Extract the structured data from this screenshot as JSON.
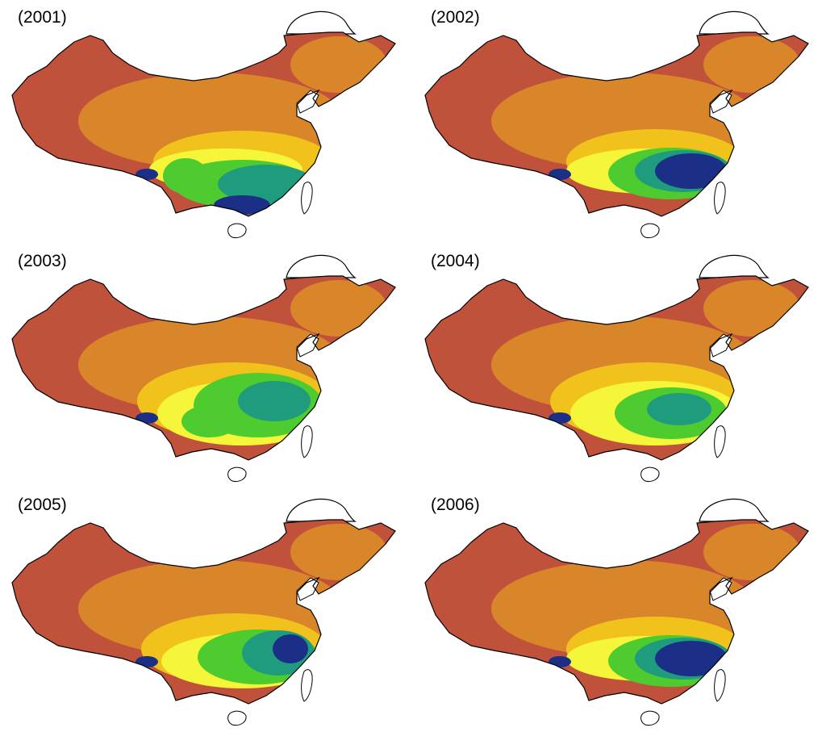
{
  "panels": [
    {
      "year_label": "(2001)",
      "pattern": "south",
      "colors": {
        "outer": "#c0513b",
        "north": "#d9862a",
        "mid": "#f2c21c",
        "light": "#f5f53a",
        "green": "#4ecb2e",
        "teal": "#1f9c7d",
        "blue": "#1b2f86"
      }
    },
    {
      "year_label": "(2002)",
      "pattern": "southeast",
      "colors": {
        "outer": "#c0513b",
        "north": "#d9862a",
        "mid": "#f2c21c",
        "light": "#f5f53a",
        "green": "#4ecb2e",
        "teal": "#1f9c7d",
        "blue": "#1b2f86"
      }
    },
    {
      "year_label": "(2003)",
      "pattern": "central",
      "colors": {
        "outer": "#c0513b",
        "north": "#d9862a",
        "mid": "#f2c21c",
        "light": "#f5f53a",
        "green": "#4ecb2e",
        "teal": "#1f9c7d",
        "blue": "#1b2f86"
      }
    },
    {
      "year_label": "(2004)",
      "pattern": "central-light",
      "colors": {
        "outer": "#c0513b",
        "north": "#d9862a",
        "mid": "#f2c21c",
        "light": "#f5f53a",
        "green": "#4ecb2e",
        "teal": "#1f9c7d",
        "blue": "#1b2f86"
      }
    },
    {
      "year_label": "(2005)",
      "pattern": "east",
      "colors": {
        "outer": "#c0513b",
        "north": "#d9862a",
        "mid": "#f2c21c",
        "light": "#f5f53a",
        "green": "#4ecb2e",
        "teal": "#1f9c7d",
        "blue": "#1b2f86"
      }
    },
    {
      "year_label": "(2006)",
      "pattern": "southeast",
      "colors": {
        "outer": "#c0513b",
        "north": "#d9862a",
        "mid": "#f2c21c",
        "light": "#f5f53a",
        "green": "#4ecb2e",
        "teal": "#1f9c7d",
        "blue": "#1b2f86"
      }
    }
  ]
}
